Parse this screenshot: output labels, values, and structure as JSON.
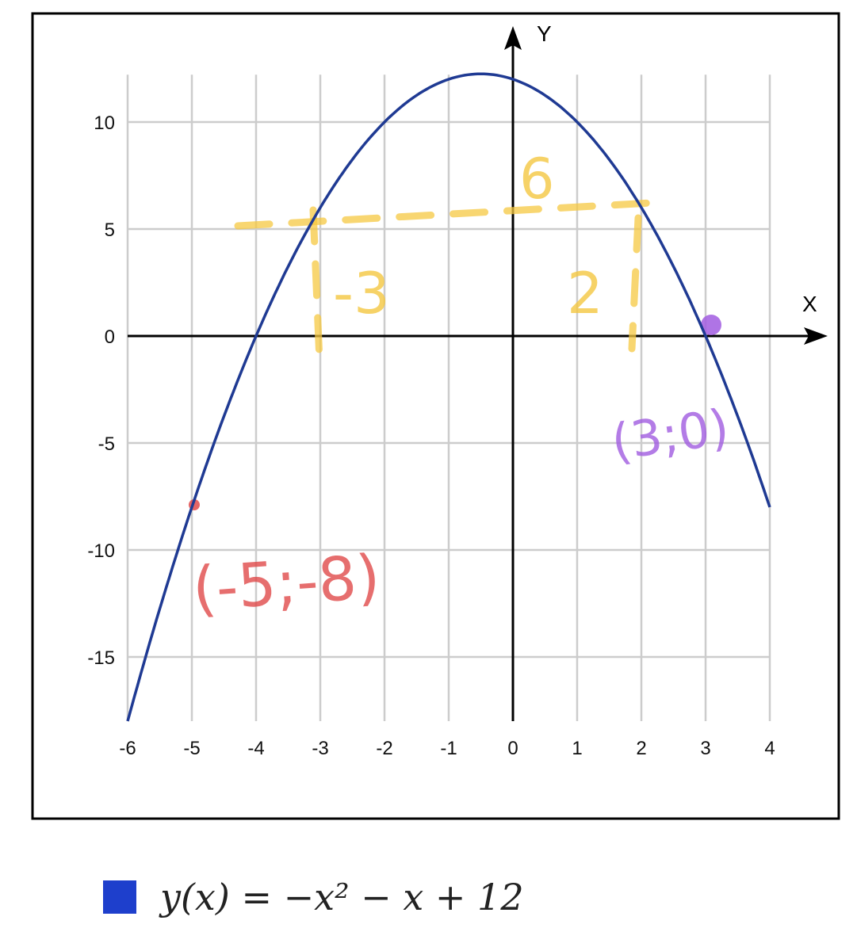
{
  "chart_data": {
    "type": "line",
    "title": "",
    "xlabel": "X",
    "ylabel": "Y",
    "xlim": [
      -6,
      4
    ],
    "ylim": [
      -18,
      12.25
    ],
    "grid": true,
    "x_ticks": [
      -6,
      -5,
      -4,
      -3,
      -2,
      -1,
      0,
      1,
      2,
      3,
      4
    ],
    "y_ticks": [
      10,
      5,
      0,
      -5,
      -10,
      -15
    ],
    "series": [
      {
        "name": "y(x) = −x² − x + 12",
        "function": "-x^2 - x + 12",
        "x_range": [
          -6,
          4
        ],
        "color": "#1f3a93"
      }
    ],
    "legend": {
      "position": "bottom-left",
      "label": "y(x) = −x² − x + 12",
      "color": "#1e3fcc"
    },
    "annotations": [
      {
        "text": "6",
        "color": "#f5c842",
        "note_type": "handwritten"
      },
      {
        "text": "-3",
        "color": "#f5c842",
        "note_type": "handwritten"
      },
      {
        "text": "2",
        "color": "#f5c842",
        "note_type": "handwritten"
      },
      {
        "text": "(3;0)",
        "color": "#a15ce0",
        "note_type": "handwritten",
        "point": [
          3,
          0
        ]
      },
      {
        "text": "(-5;-8)",
        "color": "#e04a4a",
        "note_type": "handwritten",
        "point": [
          -5,
          -8
        ]
      }
    ]
  }
}
